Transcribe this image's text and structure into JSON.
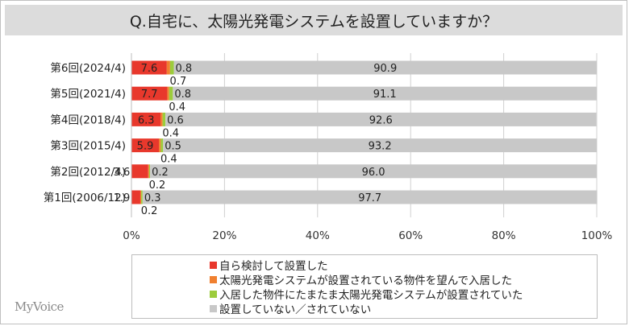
{
  "title": "Q.自宅に、太陽光発電システムを設置していますか？",
  "logo": "MyVoice",
  "colors": {
    "self_considered": "#e8382c",
    "preinstalled_wanted": "#f08030",
    "happened_installed": "#9ccc3c",
    "not_installed": "#c8c8c8"
  },
  "chart_data": {
    "type": "bar",
    "orientation": "horizontal",
    "stacked": true,
    "percent_stacked": true,
    "categories": [
      "第6回(2024/4)",
      "第5回(2021/4)",
      "第4回(2018/4)",
      "第3回(2015/4)",
      "第2回(2012/4)",
      "第1回(2006/12)"
    ],
    "series": [
      {
        "name": "自ら検討して設置した",
        "color": "#e8382c",
        "values": [
          7.6,
          7.7,
          6.3,
          5.9,
          3.6,
          1.9
        ],
        "labels": [
          "7.6",
          "7.7",
          "6.3",
          "5.9",
          "3.6",
          "1.9"
        ]
      },
      {
        "name": "太陽光発電システムが設置されている物件を望んで入居した",
        "color": "#f08030",
        "values": [
          0.7,
          0.4,
          0.4,
          0.4,
          0.2,
          0.2
        ],
        "labels": [
          "0.7",
          "0.4",
          "0.4",
          "0.4",
          "0.2",
          "0.2"
        ]
      },
      {
        "name": "入居した物件にたまたま太陽光発電システムが設置されていた",
        "color": "#9ccc3c",
        "values": [
          0.8,
          0.8,
          0.6,
          0.5,
          0.2,
          0.3
        ],
        "labels": [
          "0.8",
          "0.8",
          "0.6",
          "0.5",
          "0.2",
          "0.3"
        ]
      },
      {
        "name": "設置していない／されていない",
        "color": "#c8c8c8",
        "values": [
          90.9,
          91.1,
          92.6,
          93.2,
          96.0,
          97.7
        ],
        "labels": [
          "90.9",
          "91.1",
          "92.6",
          "93.2",
          "96.0",
          "97.7"
        ]
      }
    ],
    "xlim": [
      0,
      100
    ],
    "xticks": [
      "0%",
      "20%",
      "40%",
      "60%",
      "80%",
      "100%"
    ],
    "grid": true,
    "legend_position": "bottom"
  }
}
